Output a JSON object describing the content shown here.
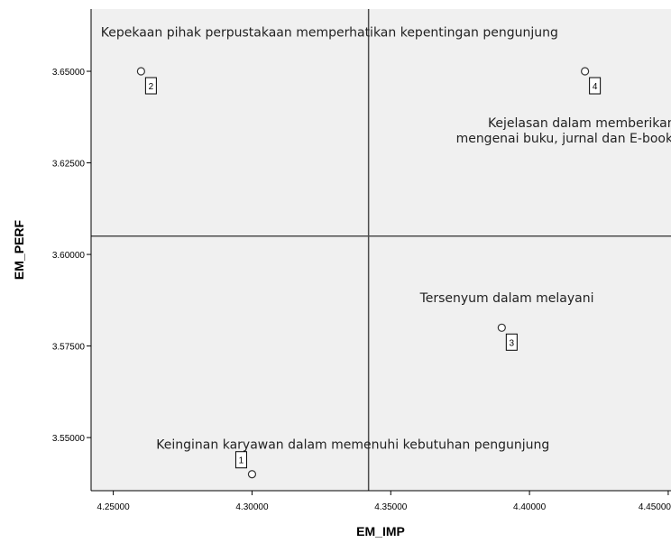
{
  "chart_data": {
    "type": "scatter",
    "xlabel": "EM_IMP",
    "ylabel": "EM_PERF",
    "xlim": [
      4.242,
      4.451
    ],
    "ylim": [
      3.5355,
      3.667
    ],
    "x_ticks": [
      {
        "value": 4.25,
        "label": "4.25000"
      },
      {
        "value": 4.3,
        "label": "4.30000"
      },
      {
        "value": 4.35,
        "label": "4.35000"
      },
      {
        "value": 4.4,
        "label": "4.40000"
      },
      {
        "value": 4.45,
        "label": "4.45000"
      }
    ],
    "y_ticks": [
      {
        "value": 3.55,
        "label": "3.55000"
      },
      {
        "value": 3.575,
        "label": "3.57500"
      },
      {
        "value": 3.6,
        "label": "3.60000"
      },
      {
        "value": 3.625,
        "label": "3.62500"
      },
      {
        "value": 3.65,
        "label": "3.65000"
      }
    ],
    "reference_lines": {
      "x": 4.342,
      "y": 3.605
    },
    "grid": false,
    "points": [
      {
        "id": "1",
        "x": 4.3,
        "y": 3.54
      },
      {
        "id": "2",
        "x": 4.26,
        "y": 3.65
      },
      {
        "id": "3",
        "x": 4.39,
        "y": 3.58
      },
      {
        "id": "4",
        "x": 4.42,
        "y": 3.65
      }
    ],
    "annotations": [
      {
        "text": "Kepekaan pihak perpustakaan memperhatikan kepentingan pengunjung",
        "x": 4.2455,
        "y": 3.6595
      },
      {
        "text": "Kejelasan dalam memberikan informasi",
        "x": 4.385,
        "y": 3.6347
      },
      {
        "text": "mengenai buku, jurnal dan E-book yang ada",
        "x": 4.3735,
        "y": 3.6305
      },
      {
        "text": "Tersenyum dalam melayani",
        "x": 4.3605,
        "y": 3.587
      },
      {
        "text": "Keinginan karyawan dalam memenuhi kebutuhan pengunjung",
        "x": 4.2655,
        "y": 3.547
      }
    ],
    "colors": {
      "plot_background": "#f0f0f0",
      "reference_line": "#4d4d4d",
      "marker_stroke": "#333333",
      "marker_fill": "#ffffff",
      "axis": "#000000"
    }
  }
}
